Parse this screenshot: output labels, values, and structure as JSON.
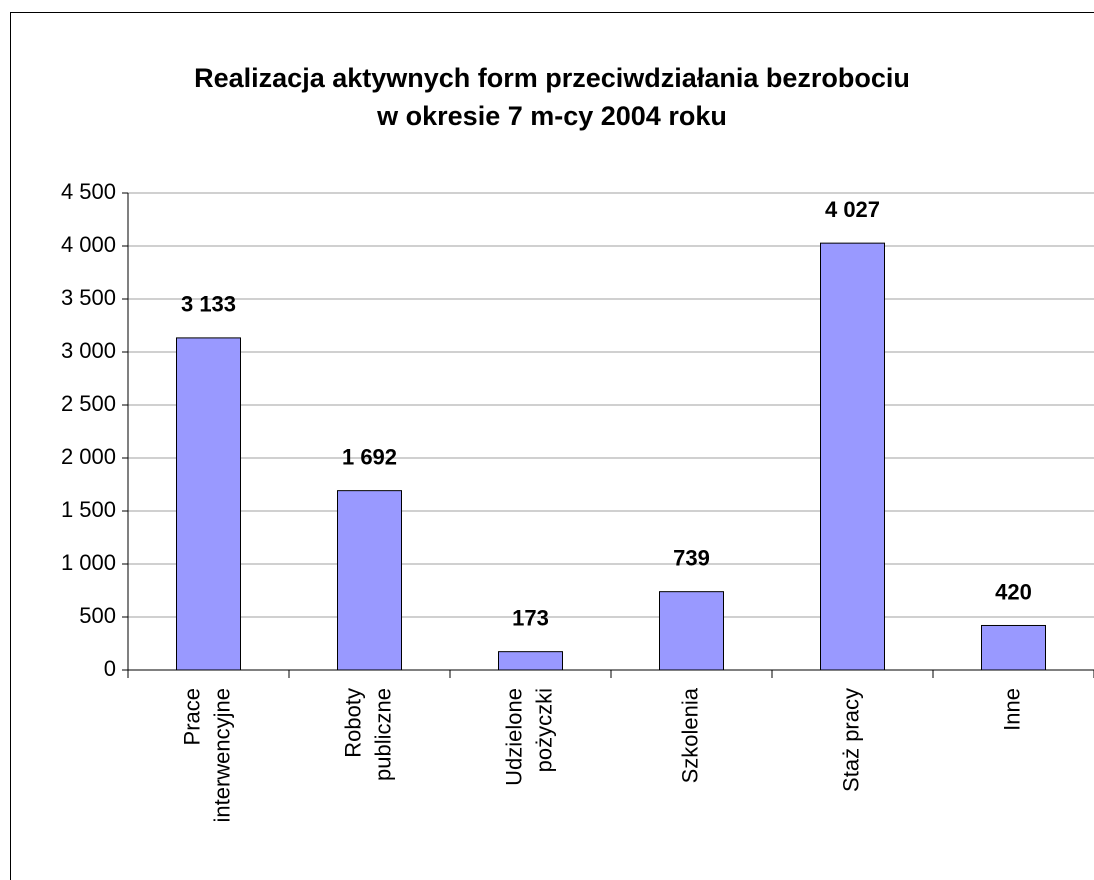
{
  "chart_data": {
    "type": "bar",
    "title": [
      "Realizacja aktywnych form przeciwdziałania bezrobociu",
      "w okresie 7 m-cy 2004 roku"
    ],
    "categories": [
      [
        "Prace",
        "interwencyjne"
      ],
      [
        "Roboty",
        "publiczne"
      ],
      [
        "Udzielone",
        "pożyczki"
      ],
      [
        "Szkolenia"
      ],
      [
        "Staż pracy"
      ],
      [
        "Inne"
      ]
    ],
    "values": [
      3133,
      1692,
      173,
      739,
      4027,
      420
    ],
    "value_labels": [
      "3 133",
      "1 692",
      "173",
      "739",
      "4 027",
      "420"
    ],
    "color": "#9999ff",
    "ylim": [
      0,
      4500
    ],
    "yticks": [
      0,
      500,
      {
        "value": 1000,
        "label": "1 000"
      },
      {
        "value": 1500,
        "label": "1 500"
      },
      {
        "value": 2000,
        "label": "2 000"
      },
      {
        "value": 2500,
        "label": "2 500"
      },
      {
        "value": 3000,
        "label": "3 000"
      },
      {
        "value": 3500,
        "label": "3 500"
      },
      {
        "value": 4000,
        "label": "4 000"
      },
      {
        "value": 4500,
        "label": "4 500"
      }
    ],
    "grid": true
  }
}
